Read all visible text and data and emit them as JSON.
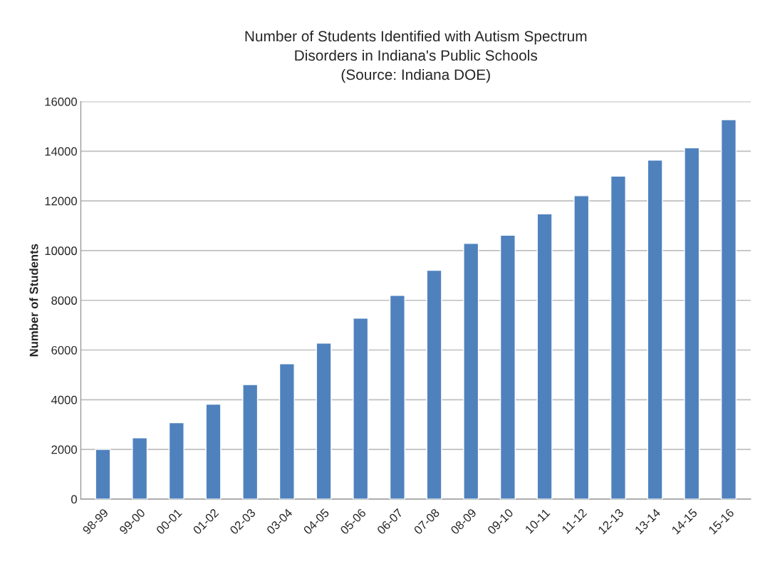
{
  "chart_data": {
    "type": "bar",
    "title": "Number of Students Identified with Autism Spectrum\nDisorders in Indiana's Public Schools\n(Source: Indiana DOE)",
    "ylabel": "Number of Students",
    "categories": [
      "98-99",
      "99-00",
      "00-01",
      "01-02",
      "02-03",
      "03-04",
      "04-05",
      "05-06",
      "06-07",
      "07-08",
      "08-09",
      "09-10",
      "10-11",
      "11-12",
      "12-13",
      "13-14",
      "14-15",
      "15-16"
    ],
    "values": [
      2000,
      2470,
      3080,
      3820,
      4610,
      5450,
      6280,
      7280,
      8200,
      9210,
      10290,
      10620,
      11480,
      12210,
      13000,
      13640,
      14140,
      15270
    ],
    "color": "#4f81bd",
    "ylim": [
      0,
      16000
    ],
    "yticks": [
      0,
      2000,
      4000,
      6000,
      8000,
      10000,
      12000,
      14000,
      16000
    ],
    "grid": "y"
  }
}
